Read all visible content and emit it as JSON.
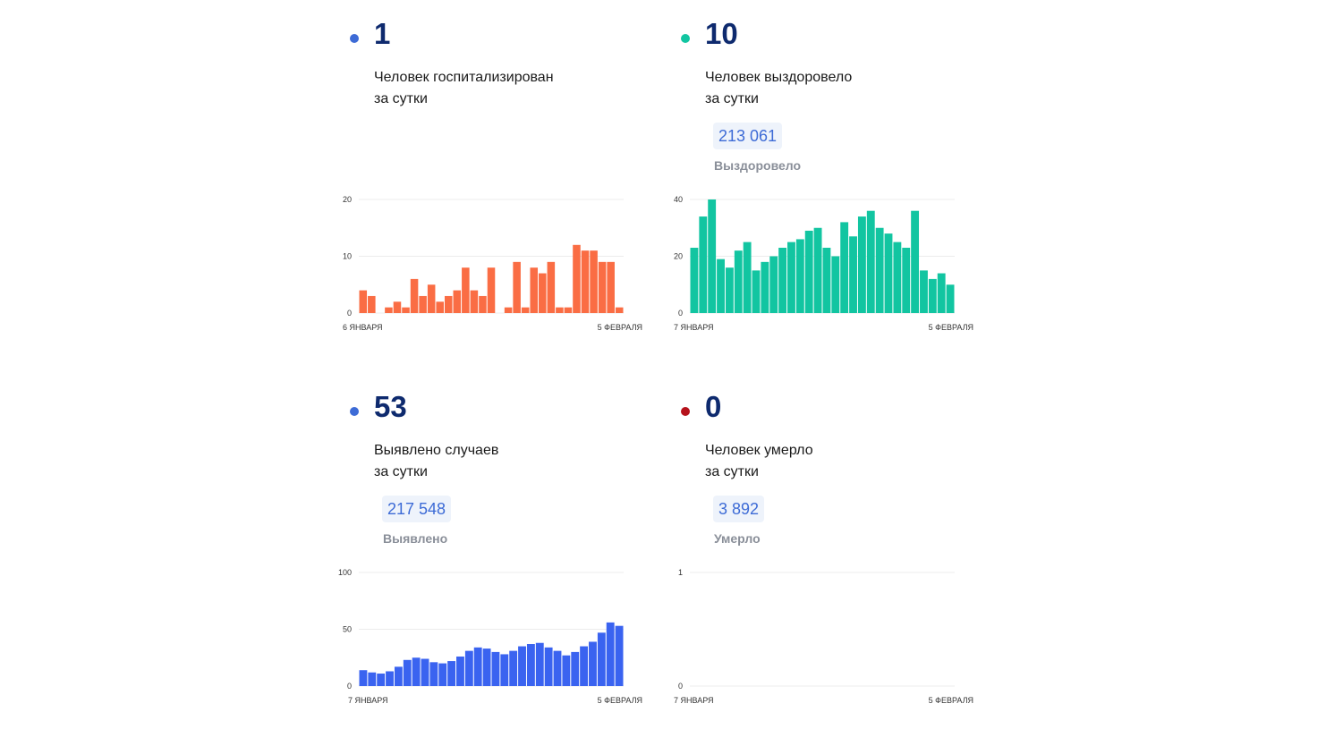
{
  "cards": [
    {
      "id": "hospitalized",
      "number": "1",
      "desc_line1": "Человек госпитализирован",
      "desc_line2": "за сутки",
      "total": "",
      "total_label": "",
      "dot_color": "#3d6bd6",
      "bar_color": "#fa6d44"
    },
    {
      "id": "recovered",
      "number": "10",
      "desc_line1": "Человек выздоровело",
      "desc_line2": "за сутки",
      "total": "213 061",
      "total_label": "Выздоровело",
      "dot_color": "#12c5a1",
      "bar_color": "#12c5a1"
    },
    {
      "id": "cases",
      "number": "53",
      "desc_line1": "Выявлено случаев",
      "desc_line2": "за сутки",
      "total": "217 548",
      "total_label": "Выявлено",
      "dot_color": "#3d6bd6",
      "bar_color": "#3a63f0"
    },
    {
      "id": "deaths",
      "number": "0",
      "desc_line1": "Человек умерло",
      "desc_line2": "за сутки",
      "total": "3 892",
      "total_label": "Умерло",
      "dot_color": "#b5121b",
      "bar_color": "#b5121b"
    }
  ],
  "chart_data": [
    {
      "type": "bar",
      "y_ticks": [
        "0",
        "10",
        "20"
      ],
      "ylim": [
        0,
        20
      ],
      "x_start_label": "6 ЯНВАРЯ",
      "x_end_label": "5 ФЕВРАЛЯ",
      "values": [
        4,
        3,
        0,
        1,
        2,
        1,
        6,
        3,
        5,
        2,
        3,
        4,
        8,
        4,
        3,
        8,
        0,
        1,
        9,
        1,
        8,
        7,
        9,
        1,
        1,
        12,
        11,
        11,
        9,
        9,
        1
      ]
    },
    {
      "type": "bar",
      "y_ticks": [
        "0",
        "20",
        "40"
      ],
      "ylim": [
        0,
        40
      ],
      "x_start_label": "7 ЯНВАРЯ",
      "x_end_label": "5 ФЕВРАЛЯ",
      "values": [
        23,
        34,
        40,
        19,
        16,
        22,
        25,
        15,
        18,
        20,
        23,
        25,
        26,
        29,
        30,
        23,
        20,
        32,
        27,
        34,
        36,
        30,
        28,
        25,
        23,
        36,
        15,
        12,
        14,
        10
      ]
    },
    {
      "type": "bar",
      "y_ticks": [
        "0",
        "50",
        "100"
      ],
      "ylim": [
        0,
        100
      ],
      "x_start_label": "7 ЯНВАРЯ",
      "x_end_label": "5 ФЕВРАЛЯ",
      "values": [
        14,
        12,
        11,
        13,
        17,
        23,
        25,
        24,
        21,
        20,
        22,
        26,
        31,
        34,
        33,
        30,
        28,
        31,
        35,
        37,
        38,
        34,
        31,
        27,
        30,
        35,
        39,
        47,
        56,
        53
      ]
    },
    {
      "type": "bar",
      "y_ticks": [
        "0",
        "1"
      ],
      "ylim": [
        0,
        1
      ],
      "x_start_label": "7 ЯНВАРЯ",
      "x_end_label": "5 ФЕВРАЛЯ",
      "values": [
        0,
        0,
        0,
        0,
        0,
        0,
        0,
        0,
        0,
        0,
        0,
        0,
        0,
        0,
        0,
        0,
        0,
        0,
        0,
        0,
        0,
        0,
        0,
        0,
        0,
        0,
        0,
        0,
        0,
        0
      ]
    }
  ]
}
